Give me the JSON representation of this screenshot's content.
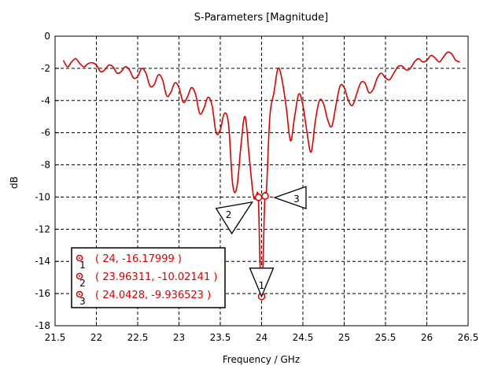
{
  "chart_data": {
    "type": "line",
    "title": "S-Parameters [Magnitude]",
    "xlabel": "Frequency / GHz",
    "ylabel": "dB",
    "xlim": [
      21.5,
      26.5
    ],
    "ylim": [
      -18,
      0
    ],
    "xticks": [
      "21.5",
      "22",
      "22.5",
      "23",
      "23.5",
      "24",
      "24.5",
      "25",
      "25.5",
      "26",
      "26.5"
    ],
    "yticks": [
      "0",
      "-2",
      "-4",
      "-6",
      "-8",
      "-10",
      "-12",
      "-14",
      "-16",
      "-18"
    ],
    "grid": true,
    "line_color": "#e00000",
    "series": [
      {
        "x": [
          21.6,
          21.65,
          21.7,
          21.75,
          21.8,
          21.85,
          21.9,
          21.95,
          22.0,
          22.05,
          22.1,
          22.15,
          22.2,
          22.25,
          22.3,
          22.35,
          22.4,
          22.45,
          22.5,
          22.55,
          22.6,
          22.65,
          22.7,
          22.75,
          22.8,
          22.85,
          22.9,
          22.95,
          23.0,
          23.05,
          23.1,
          23.15,
          23.2,
          23.25,
          23.3,
          23.35,
          23.4,
          23.45,
          23.5,
          23.55,
          23.6,
          23.65,
          23.7,
          23.75,
          23.8,
          23.85,
          23.9,
          23.93,
          23.96,
          23.98,
          24.0,
          24.02,
          24.04,
          24.06,
          24.1,
          24.15,
          24.2,
          24.25,
          24.3,
          24.35,
          24.4,
          24.45,
          24.5,
          24.55,
          24.6,
          24.65,
          24.7,
          24.75,
          24.8,
          24.85,
          24.9,
          24.95,
          25.0,
          25.05,
          25.1,
          25.15,
          25.2,
          25.25,
          25.3,
          25.35,
          25.4,
          25.45,
          25.5,
          25.55,
          25.6,
          25.65,
          25.7,
          25.75,
          25.8,
          25.85,
          25.9,
          25.95,
          26.0,
          26.05,
          26.1,
          26.15,
          26.2,
          26.25,
          26.3,
          26.35,
          26.4
        ],
        "y": [
          -1.5,
          -1.9,
          -1.6,
          -1.4,
          -1.7,
          -1.9,
          -1.7,
          -1.65,
          -1.8,
          -2.2,
          -2.1,
          -1.8,
          -1.9,
          -2.3,
          -2.2,
          -1.9,
          -2.1,
          -2.6,
          -2.5,
          -2.0,
          -2.3,
          -3.1,
          -3.0,
          -2.4,
          -2.7,
          -3.7,
          -3.5,
          -2.9,
          -3.2,
          -4.1,
          -3.8,
          -3.2,
          -3.6,
          -4.8,
          -4.5,
          -3.8,
          -4.3,
          -6.0,
          -5.8,
          -4.8,
          -5.5,
          -9.2,
          -9.4,
          -6.8,
          -5.0,
          -7.5,
          -9.9,
          -10.0,
          -10.02,
          -14.0,
          -16.18,
          -13.5,
          -9.94,
          -9.5,
          -5.0,
          -3.5,
          -2.0,
          -2.8,
          -4.5,
          -6.5,
          -5.0,
          -3.6,
          -4.3,
          -6.0,
          -7.2,
          -5.3,
          -4.0,
          -4.2,
          -5.2,
          -5.6,
          -4.3,
          -3.1,
          -3.2,
          -4.0,
          -4.3,
          -3.6,
          -2.9,
          -2.9,
          -3.5,
          -3.3,
          -2.6,
          -2.3,
          -2.6,
          -2.7,
          -2.3,
          -1.9,
          -1.85,
          -2.1,
          -2.0,
          -1.6,
          -1.4,
          -1.6,
          -1.5,
          -1.2,
          -1.35,
          -1.6,
          -1.3,
          -1.0,
          -1.1,
          -1.5,
          -1.6
        ]
      }
    ],
    "markers": [
      {
        "id": "1",
        "x": 24.0,
        "y": -16.17999,
        "label": "( 24, -16.17999 )"
      },
      {
        "id": "2",
        "x": 23.96311,
        "y": -10.02141,
        "label": "( 23.96311, -10.02141 )"
      },
      {
        "id": "3",
        "x": 24.0428,
        "y": -9.936523,
        "label": "( 24.0428, -9.936523 )"
      }
    ]
  }
}
